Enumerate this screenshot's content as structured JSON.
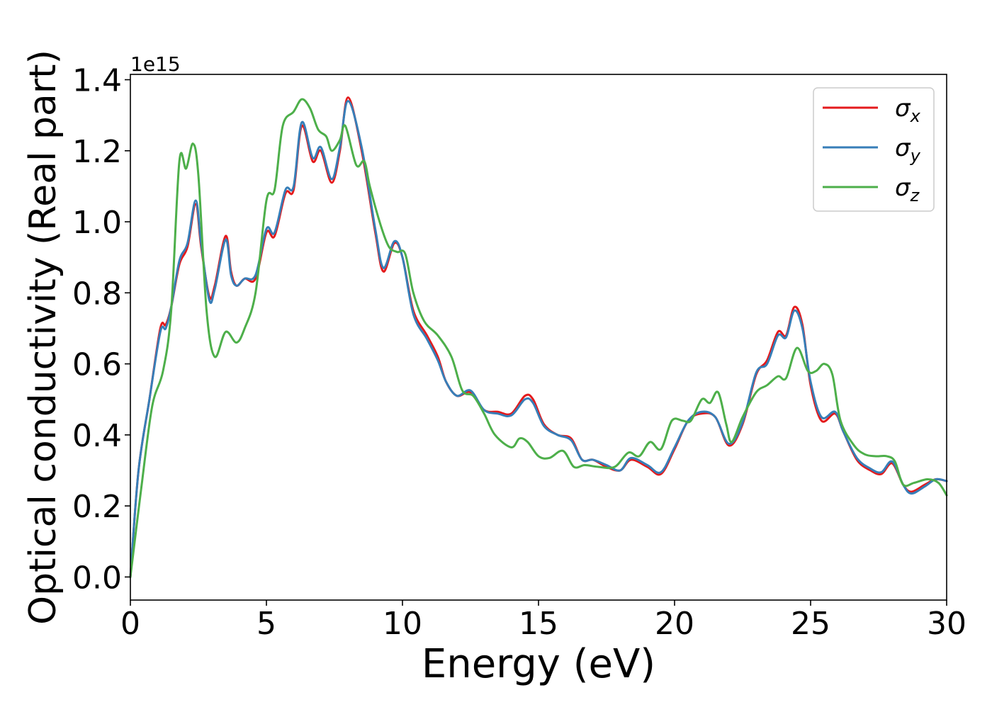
{
  "chart_data": {
    "type": "line",
    "xlabel": "Energy (eV)",
    "ylabel": "Optical conductivity (Real part)",
    "y_offset_label": "1e15",
    "xlim": [
      0,
      30
    ],
    "ylim": [
      -0.065,
      1.415
    ],
    "x_ticks": [
      0,
      5,
      10,
      15,
      20,
      25,
      30
    ],
    "x_tick_labels": [
      "0",
      "5",
      "10",
      "15",
      "20",
      "25",
      "30"
    ],
    "y_ticks": [
      0.0,
      0.2,
      0.4,
      0.6,
      0.8,
      1.0,
      1.2,
      1.4
    ],
    "y_tick_labels": [
      "0.0",
      "0.2",
      "0.4",
      "0.6",
      "0.8",
      "1.0",
      "1.2",
      "1.4"
    ],
    "grid": false,
    "legend_position": "top-right",
    "series": [
      {
        "name": "σx",
        "symbol": "σ",
        "subscript": "x",
        "color": "#e41a1c",
        "points": [
          [
            0,
            0.0
          ],
          [
            0.3,
            0.3
          ],
          [
            0.7,
            0.5
          ],
          [
            1.1,
            0.7
          ],
          [
            1.3,
            0.71
          ],
          [
            1.5,
            0.76
          ],
          [
            1.8,
            0.88
          ],
          [
            2.1,
            0.93
          ],
          [
            2.4,
            1.05
          ],
          [
            2.6,
            0.93
          ],
          [
            2.9,
            0.79
          ],
          [
            3.1,
            0.82
          ],
          [
            3.5,
            0.96
          ],
          [
            3.7,
            0.86
          ],
          [
            3.9,
            0.82
          ],
          [
            4.2,
            0.84
          ],
          [
            4.6,
            0.84
          ],
          [
            5.0,
            0.97
          ],
          [
            5.3,
            0.96
          ],
          [
            5.7,
            1.08
          ],
          [
            6.0,
            1.09
          ],
          [
            6.3,
            1.27
          ],
          [
            6.7,
            1.17
          ],
          [
            7.0,
            1.2
          ],
          [
            7.4,
            1.11
          ],
          [
            7.7,
            1.2
          ],
          [
            8.0,
            1.35
          ],
          [
            8.5,
            1.2
          ],
          [
            9.0,
            0.97
          ],
          [
            9.3,
            0.86
          ],
          [
            9.7,
            0.94
          ],
          [
            10.0,
            0.9
          ],
          [
            10.4,
            0.75
          ],
          [
            10.9,
            0.68
          ],
          [
            11.3,
            0.62
          ],
          [
            11.6,
            0.55
          ],
          [
            12.0,
            0.51
          ],
          [
            12.5,
            0.52
          ],
          [
            13.0,
            0.47
          ],
          [
            13.5,
            0.465
          ],
          [
            14.0,
            0.46
          ],
          [
            14.5,
            0.51
          ],
          [
            14.8,
            0.5
          ],
          [
            15.2,
            0.43
          ],
          [
            15.7,
            0.4
          ],
          [
            16.2,
            0.39
          ],
          [
            16.6,
            0.33
          ],
          [
            17.0,
            0.33
          ],
          [
            17.5,
            0.31
          ],
          [
            18.0,
            0.3
          ],
          [
            18.4,
            0.33
          ],
          [
            19.0,
            0.31
          ],
          [
            19.5,
            0.29
          ],
          [
            20.0,
            0.36
          ],
          [
            20.5,
            0.44
          ],
          [
            21.0,
            0.46
          ],
          [
            21.5,
            0.45
          ],
          [
            22.0,
            0.37
          ],
          [
            22.5,
            0.43
          ],
          [
            23.0,
            0.57
          ],
          [
            23.4,
            0.61
          ],
          [
            23.8,
            0.69
          ],
          [
            24.1,
            0.68
          ],
          [
            24.4,
            0.76
          ],
          [
            24.7,
            0.71
          ],
          [
            25.0,
            0.54
          ],
          [
            25.4,
            0.44
          ],
          [
            25.9,
            0.46
          ],
          [
            26.2,
            0.41
          ],
          [
            26.7,
            0.33
          ],
          [
            27.2,
            0.3
          ],
          [
            27.6,
            0.29
          ],
          [
            28.0,
            0.32
          ],
          [
            28.4,
            0.26
          ],
          [
            28.7,
            0.24
          ],
          [
            29.2,
            0.26
          ],
          [
            29.6,
            0.275
          ],
          [
            30.0,
            0.27
          ]
        ]
      },
      {
        "name": "σy",
        "symbol": "σ",
        "subscript": "y",
        "color": "#377eb8",
        "points": [
          [
            0,
            0.0
          ],
          [
            0.3,
            0.3
          ],
          [
            0.7,
            0.5
          ],
          [
            1.1,
            0.69
          ],
          [
            1.3,
            0.7
          ],
          [
            1.5,
            0.76
          ],
          [
            1.8,
            0.89
          ],
          [
            2.1,
            0.94
          ],
          [
            2.4,
            1.06
          ],
          [
            2.6,
            0.94
          ],
          [
            2.9,
            0.78
          ],
          [
            3.1,
            0.81
          ],
          [
            3.5,
            0.95
          ],
          [
            3.7,
            0.85
          ],
          [
            3.9,
            0.82
          ],
          [
            4.2,
            0.84
          ],
          [
            4.6,
            0.85
          ],
          [
            5.0,
            0.98
          ],
          [
            5.3,
            0.97
          ],
          [
            5.7,
            1.09
          ],
          [
            6.0,
            1.1
          ],
          [
            6.3,
            1.28
          ],
          [
            6.7,
            1.18
          ],
          [
            7.0,
            1.21
          ],
          [
            7.4,
            1.12
          ],
          [
            7.7,
            1.21
          ],
          [
            8.0,
            1.34
          ],
          [
            8.5,
            1.21
          ],
          [
            9.0,
            0.98
          ],
          [
            9.3,
            0.87
          ],
          [
            9.7,
            0.945
          ],
          [
            10.0,
            0.9
          ],
          [
            10.4,
            0.74
          ],
          [
            10.9,
            0.67
          ],
          [
            11.3,
            0.61
          ],
          [
            11.6,
            0.55
          ],
          [
            12.0,
            0.51
          ],
          [
            12.5,
            0.525
          ],
          [
            13.0,
            0.47
          ],
          [
            13.5,
            0.46
          ],
          [
            14.0,
            0.455
          ],
          [
            14.5,
            0.5
          ],
          [
            14.8,
            0.49
          ],
          [
            15.2,
            0.425
          ],
          [
            15.7,
            0.4
          ],
          [
            16.2,
            0.385
          ],
          [
            16.6,
            0.33
          ],
          [
            17.0,
            0.33
          ],
          [
            17.5,
            0.315
          ],
          [
            18.0,
            0.3
          ],
          [
            18.4,
            0.335
          ],
          [
            19.0,
            0.315
          ],
          [
            19.5,
            0.295
          ],
          [
            20.0,
            0.365
          ],
          [
            20.5,
            0.44
          ],
          [
            21.0,
            0.465
          ],
          [
            21.5,
            0.45
          ],
          [
            22.0,
            0.375
          ],
          [
            22.5,
            0.435
          ],
          [
            23.0,
            0.575
          ],
          [
            23.4,
            0.6
          ],
          [
            23.8,
            0.68
          ],
          [
            24.1,
            0.675
          ],
          [
            24.4,
            0.75
          ],
          [
            24.7,
            0.7
          ],
          [
            25.0,
            0.55
          ],
          [
            25.4,
            0.45
          ],
          [
            25.9,
            0.465
          ],
          [
            26.2,
            0.41
          ],
          [
            26.7,
            0.335
          ],
          [
            27.2,
            0.305
          ],
          [
            27.6,
            0.295
          ],
          [
            28.0,
            0.325
          ],
          [
            28.4,
            0.26
          ],
          [
            28.7,
            0.235
          ],
          [
            29.2,
            0.255
          ],
          [
            29.6,
            0.275
          ],
          [
            30.0,
            0.27
          ]
        ]
      },
      {
        "name": "σz",
        "symbol": "σ",
        "subscript": "z",
        "color": "#4daf4a",
        "points": [
          [
            0,
            0.0
          ],
          [
            0.4,
            0.25
          ],
          [
            0.8,
            0.48
          ],
          [
            1.2,
            0.58
          ],
          [
            1.5,
            0.75
          ],
          [
            1.8,
            1.17
          ],
          [
            2.05,
            1.15
          ],
          [
            2.3,
            1.22
          ],
          [
            2.5,
            1.13
          ],
          [
            2.8,
            0.75
          ],
          [
            3.1,
            0.62
          ],
          [
            3.5,
            0.69
          ],
          [
            3.9,
            0.66
          ],
          [
            4.2,
            0.7
          ],
          [
            4.6,
            0.8
          ],
          [
            5.0,
            1.06
          ],
          [
            5.3,
            1.09
          ],
          [
            5.6,
            1.27
          ],
          [
            6.0,
            1.31
          ],
          [
            6.3,
            1.345
          ],
          [
            6.6,
            1.32
          ],
          [
            6.9,
            1.26
          ],
          [
            7.2,
            1.24
          ],
          [
            7.4,
            1.2
          ],
          [
            7.7,
            1.23
          ],
          [
            7.9,
            1.27
          ],
          [
            8.3,
            1.16
          ],
          [
            8.6,
            1.17
          ],
          [
            8.8,
            1.1
          ],
          [
            9.2,
            0.99
          ],
          [
            9.5,
            0.93
          ],
          [
            9.8,
            0.915
          ],
          [
            10.1,
            0.91
          ],
          [
            10.4,
            0.8
          ],
          [
            10.8,
            0.72
          ],
          [
            11.3,
            0.68
          ],
          [
            11.8,
            0.62
          ],
          [
            12.2,
            0.525
          ],
          [
            12.6,
            0.51
          ],
          [
            13.0,
            0.46
          ],
          [
            13.4,
            0.4
          ],
          [
            14.0,
            0.365
          ],
          [
            14.3,
            0.39
          ],
          [
            14.6,
            0.38
          ],
          [
            15.0,
            0.34
          ],
          [
            15.4,
            0.335
          ],
          [
            15.9,
            0.355
          ],
          [
            16.3,
            0.31
          ],
          [
            16.7,
            0.315
          ],
          [
            17.2,
            0.31
          ],
          [
            17.8,
            0.31
          ],
          [
            18.3,
            0.35
          ],
          [
            18.7,
            0.34
          ],
          [
            19.1,
            0.38
          ],
          [
            19.5,
            0.36
          ],
          [
            19.9,
            0.44
          ],
          [
            20.3,
            0.44
          ],
          [
            20.6,
            0.44
          ],
          [
            21.0,
            0.5
          ],
          [
            21.3,
            0.49
          ],
          [
            21.6,
            0.52
          ],
          [
            21.9,
            0.43
          ],
          [
            22.1,
            0.38
          ],
          [
            22.5,
            0.45
          ],
          [
            23.0,
            0.52
          ],
          [
            23.4,
            0.54
          ],
          [
            23.8,
            0.565
          ],
          [
            24.1,
            0.56
          ],
          [
            24.5,
            0.645
          ],
          [
            24.9,
            0.58
          ],
          [
            25.2,
            0.58
          ],
          [
            25.5,
            0.6
          ],
          [
            25.8,
            0.57
          ],
          [
            26.1,
            0.44
          ],
          [
            26.6,
            0.37
          ],
          [
            27.0,
            0.345
          ],
          [
            27.4,
            0.34
          ],
          [
            27.8,
            0.34
          ],
          [
            28.1,
            0.325
          ],
          [
            28.4,
            0.26
          ],
          [
            28.8,
            0.265
          ],
          [
            29.3,
            0.275
          ],
          [
            29.7,
            0.265
          ],
          [
            30.0,
            0.23
          ]
        ]
      }
    ]
  }
}
